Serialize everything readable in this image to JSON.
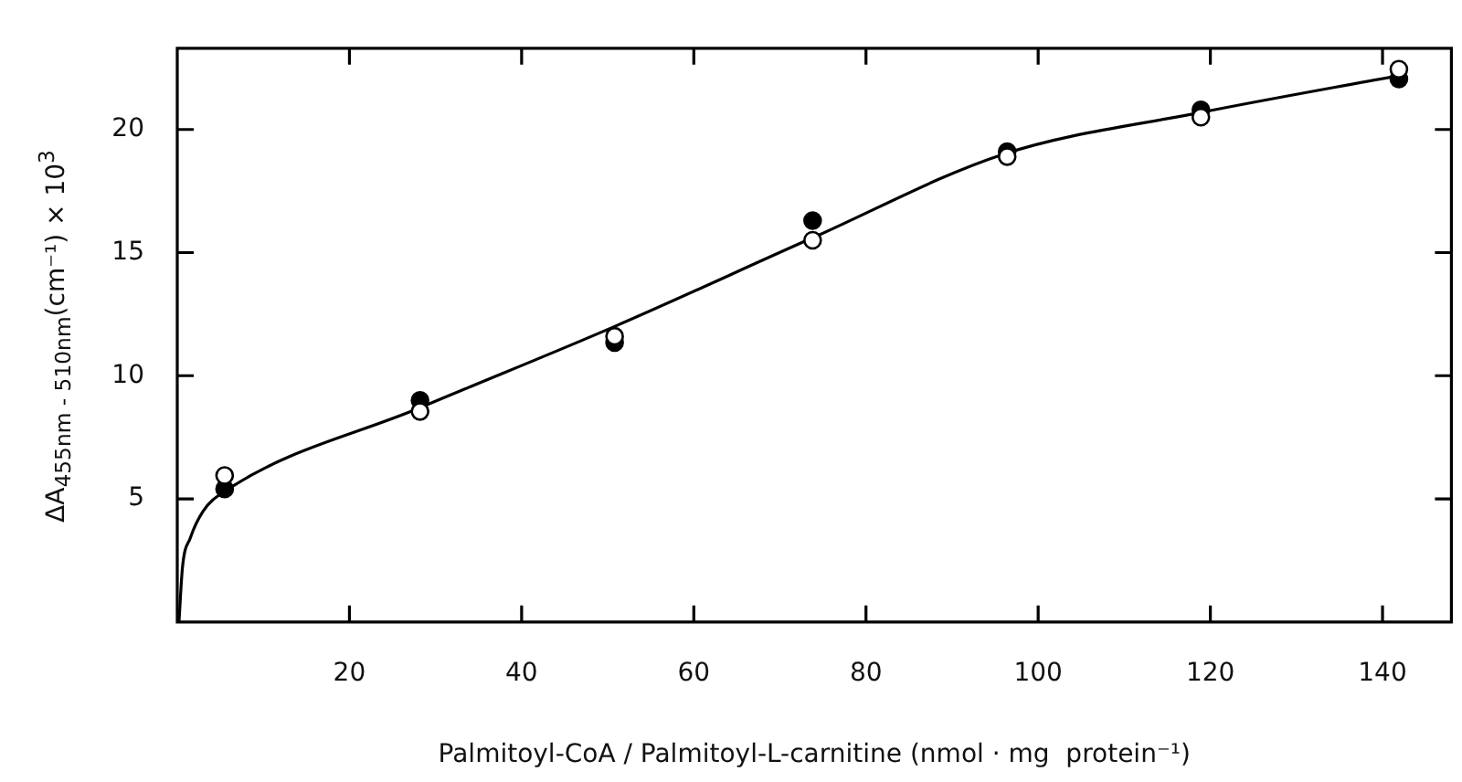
{
  "chart_data": {
    "type": "scatter",
    "xlabel": "Palmitoyl-CoA / Palmitoyl-L-carnitine (nmol · mg  protein⁻¹)",
    "ylabel": "ΔA$_{455nm - 510nm}$(cm⁻¹) × 10$^{3}$",
    "xlim": [
      0,
      148
    ],
    "ylim": [
      0,
      23.3
    ],
    "xticks": [
      20,
      40,
      60,
      80,
      100,
      120,
      140
    ],
    "yticks": [
      5,
      10,
      15,
      20
    ],
    "grid": false,
    "legend": false,
    "marker": "circle",
    "series": [
      {
        "type": "line",
        "color": "#000000",
        "marker": "none",
        "x": [
          0.2,
          0.6,
          1.5,
          3,
          5.5,
          28.2,
          50.8,
          73.8,
          96,
          119,
          142
        ],
        "values": [
          0,
          2.2,
          3.4,
          4.5,
          5.3,
          8.7,
          12.0,
          15.6,
          19,
          20.7,
          22.2
        ]
      },
      {
        "color": "#000000",
        "x": [
          5.5,
          28.2,
          50.8,
          73.8,
          96.4,
          118.9,
          141.9
        ],
        "values": [
          5.4,
          9.0,
          11.35,
          16.3,
          19.1,
          20.8,
          22.05
        ]
      },
      {
        "color": "#ffffff",
        "x": [
          5.5,
          28.2,
          50.8,
          73.8,
          96.4,
          118.9,
          141.9
        ],
        "values": [
          5.95,
          8.55,
          11.6,
          15.5,
          18.9,
          20.5,
          22.45
        ]
      }
    ]
  }
}
